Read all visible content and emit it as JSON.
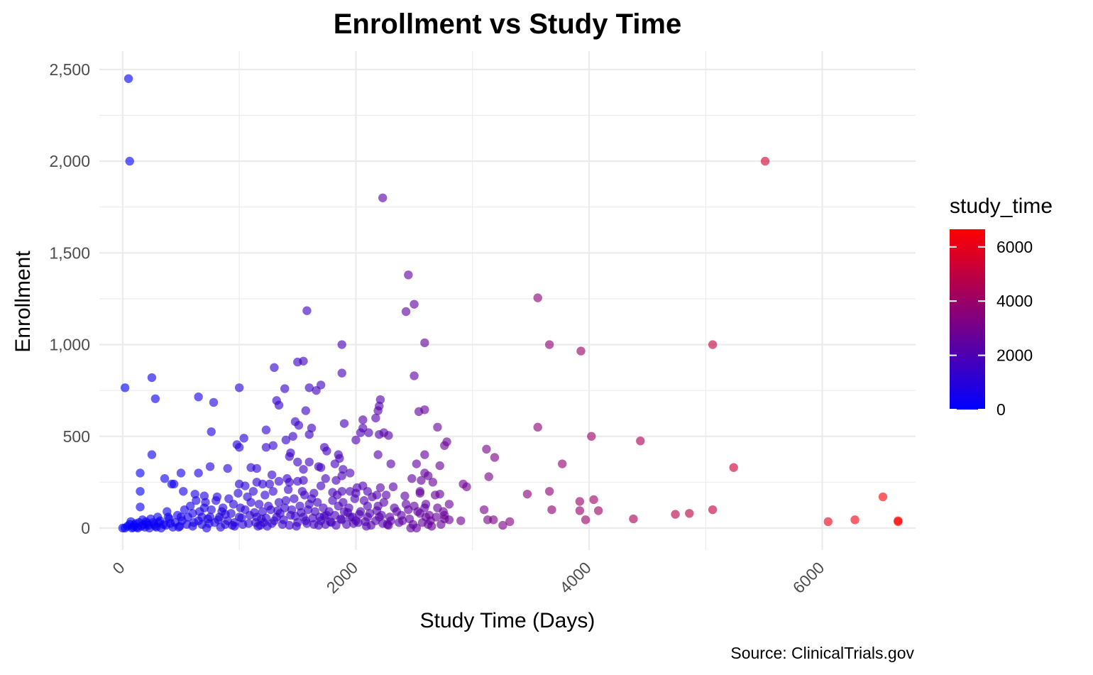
{
  "chart_data": {
    "type": "scatter",
    "title": "Enrollment vs Study Time",
    "xlabel": "Study Time (Days)",
    "ylabel": "Enrollment",
    "caption": "Source: ClinicalTrials.gov",
    "xlim": [
      -200,
      6800
    ],
    "ylim": [
      -120,
      2600
    ],
    "x_ticks": [
      0,
      2000,
      4000,
      6000
    ],
    "x_tick_labels": [
      "0",
      "2000",
      "4000",
      "6000"
    ],
    "y_ticks": [
      0,
      500,
      1000,
      1500,
      2000,
      2500
    ],
    "y_tick_labels": [
      "0",
      "500",
      "1,000",
      "1,500",
      "2,000",
      "2,500"
    ],
    "grid": true,
    "legend": {
      "title": "study_time",
      "position": "right",
      "min": 0,
      "max": 6650,
      "ticks": [
        0,
        2000,
        4000,
        6000
      ],
      "tick_labels": [
        "0",
        "2000",
        "4000",
        "6000"
      ],
      "color_low": "#0000ff",
      "color_high": "#ff0000"
    },
    "points": [
      [
        50,
        2450
      ],
      [
        60,
        2000
      ],
      [
        5510,
        2000
      ],
      [
        2230,
        1800
      ],
      [
        2450,
        1380
      ],
      [
        3560,
        1255
      ],
      [
        2500,
        1220
      ],
      [
        2430,
        1180
      ],
      [
        1580,
        1185
      ],
      [
        2590,
        1010
      ],
      [
        1880,
        1000
      ],
      [
        3660,
        1000
      ],
      [
        5060,
        1000
      ],
      [
        3930,
        965
      ],
      [
        1500,
        905
      ],
      [
        1550,
        910
      ],
      [
        1880,
        845
      ],
      [
        1300,
        875
      ],
      [
        2500,
        830
      ],
      [
        250,
        820
      ],
      [
        20,
        765
      ],
      [
        1000,
        765
      ],
      [
        1390,
        760
      ],
      [
        1600,
        765
      ],
      [
        1700,
        780
      ],
      [
        1660,
        750
      ],
      [
        280,
        705
      ],
      [
        650,
        715
      ],
      [
        780,
        685
      ],
      [
        1320,
        695
      ],
      [
        1340,
        670
      ],
      [
        2210,
        700
      ],
      [
        2200,
        665
      ],
      [
        2190,
        640
      ],
      [
        2540,
        635
      ],
      [
        2590,
        645
      ],
      [
        2170,
        600
      ],
      [
        2060,
        590
      ],
      [
        1570,
        640
      ],
      [
        1480,
        580
      ],
      [
        1510,
        560
      ],
      [
        1900,
        570
      ],
      [
        2060,
        545
      ],
      [
        2700,
        550
      ],
      [
        3560,
        550
      ],
      [
        760,
        525
      ],
      [
        1230,
        535
      ],
      [
        1040,
        490
      ],
      [
        1620,
        545
      ],
      [
        1600,
        510
      ],
      [
        2110,
        520
      ],
      [
        2240,
        520
      ],
      [
        2200,
        510
      ],
      [
        2280,
        505
      ],
      [
        2040,
        520
      ],
      [
        2000,
        480
      ],
      [
        1460,
        500
      ],
      [
        1400,
        480
      ],
      [
        2780,
        470
      ],
      [
        4020,
        500
      ],
      [
        4440,
        475
      ],
      [
        980,
        455
      ],
      [
        1000,
        440
      ],
      [
        1230,
        440
      ],
      [
        1290,
        450
      ],
      [
        1730,
        440
      ],
      [
        1750,
        420
      ],
      [
        1440,
        410
      ],
      [
        1430,
        390
      ],
      [
        1850,
        400
      ],
      [
        1860,
        380
      ],
      [
        2760,
        450
      ],
      [
        3120,
        430
      ],
      [
        250,
        400
      ],
      [
        2190,
        400
      ],
      [
        2590,
        400
      ],
      [
        3190,
        385
      ],
      [
        1500,
        360
      ],
      [
        1600,
        360
      ],
      [
        1680,
        335
      ],
      [
        1700,
        330
      ],
      [
        1820,
        350
      ],
      [
        2300,
        350
      ],
      [
        2520,
        350
      ],
      [
        1890,
        320
      ],
      [
        2590,
        300
      ],
      [
        2620,
        285
      ],
      [
        2720,
        340
      ],
      [
        3770,
        350
      ],
      [
        5240,
        330
      ],
      [
        150,
        300
      ],
      [
        500,
        300
      ],
      [
        650,
        300
      ],
      [
        750,
        335
      ],
      [
        900,
        325
      ],
      [
        1100,
        330
      ],
      [
        1150,
        325
      ],
      [
        1550,
        320
      ],
      [
        1950,
        300
      ],
      [
        1880,
        285
      ],
      [
        1280,
        290
      ],
      [
        1340,
        255
      ],
      [
        1410,
        270
      ],
      [
        1430,
        250
      ],
      [
        1550,
        260
      ],
      [
        1740,
        270
      ],
      [
        1830,
        260
      ],
      [
        2480,
        270
      ],
      [
        2560,
        260
      ],
      [
        2660,
        250
      ],
      [
        2920,
        240
      ],
      [
        2950,
        225
      ],
      [
        3140,
        280
      ],
      [
        360,
        270
      ],
      [
        420,
        240
      ],
      [
        440,
        240
      ],
      [
        1000,
        240
      ],
      [
        1050,
        230
      ],
      [
        1150,
        250
      ],
      [
        1200,
        240
      ],
      [
        1260,
        240
      ],
      [
        1500,
        255
      ],
      [
        1700,
        230
      ],
      [
        2010,
        220
      ],
      [
        2060,
        230
      ],
      [
        2210,
        220
      ],
      [
        2320,
        225
      ],
      [
        2550,
        200
      ],
      [
        3660,
        200
      ],
      [
        150,
        200
      ],
      [
        520,
        200
      ],
      [
        620,
        185
      ],
      [
        700,
        175
      ],
      [
        1560,
        180
      ],
      [
        1640,
        190
      ],
      [
        1800,
        195
      ],
      [
        1880,
        200
      ],
      [
        1950,
        200
      ],
      [
        2000,
        190
      ],
      [
        2100,
        200
      ],
      [
        2180,
        180
      ],
      [
        2260,
        180
      ],
      [
        2420,
        175
      ],
      [
        2550,
        190
      ],
      [
        2680,
        180
      ],
      [
        2720,
        185
      ],
      [
        3470,
        185
      ],
      [
        3920,
        145
      ],
      [
        4040,
        155
      ],
      [
        6520,
        170
      ],
      [
        150,
        115
      ],
      [
        3100,
        100
      ],
      [
        3680,
        100
      ],
      [
        3920,
        95
      ],
      [
        4080,
        95
      ],
      [
        5060,
        100
      ],
      [
        3970,
        45
      ],
      [
        4380,
        50
      ],
      [
        4740,
        75
      ],
      [
        4860,
        80
      ],
      [
        6050,
        35
      ],
      [
        6280,
        45
      ],
      [
        6650,
        40
      ],
      [
        6650,
        35
      ],
      [
        2900,
        40
      ],
      [
        3130,
        45
      ],
      [
        3180,
        45
      ],
      [
        3320,
        35
      ],
      [
        3260,
        15
      ],
      [
        2760,
        50
      ],
      [
        2760,
        70
      ],
      [
        2800,
        45
      ],
      [
        2470,
        0
      ],
      [
        2520,
        0
      ],
      [
        2620,
        20
      ],
      [
        2640,
        40
      ],
      [
        2600,
        60
      ],
      [
        2550,
        80
      ],
      [
        2400,
        40
      ],
      [
        2300,
        40
      ],
      [
        2200,
        60
      ],
      [
        2350,
        90
      ],
      [
        2450,
        100
      ],
      [
        2500,
        120
      ],
      [
        2600,
        130
      ],
      [
        2700,
        110
      ],
      [
        2800,
        130
      ],
      [
        2100,
        60
      ],
      [
        2100,
        120
      ],
      [
        2000,
        40
      ],
      [
        1950,
        60
      ],
      [
        1900,
        90
      ],
      [
        1850,
        120
      ],
      [
        1800,
        150
      ],
      [
        1750,
        70
      ],
      [
        1700,
        40
      ],
      [
        1650,
        90
      ],
      [
        1600,
        130
      ],
      [
        1550,
        60
      ],
      [
        1500,
        30
      ],
      [
        1450,
        100
      ],
      [
        1400,
        150
      ],
      [
        1350,
        80
      ],
      [
        1300,
        40
      ],
      [
        1250,
        120
      ],
      [
        1200,
        90
      ],
      [
        1150,
        60
      ],
      [
        1100,
        140
      ],
      [
        1050,
        100
      ],
      [
        1000,
        60
      ],
      [
        950,
        130
      ],
      [
        900,
        40
      ],
      [
        850,
        90
      ],
      [
        800,
        150
      ],
      [
        750,
        60
      ],
      [
        700,
        110
      ],
      [
        650,
        40
      ],
      [
        600,
        80
      ],
      [
        550,
        20
      ],
      [
        500,
        60
      ],
      [
        450,
        30
      ],
      [
        400,
        50
      ],
      [
        380,
        90
      ],
      [
        350,
        20
      ],
      [
        320,
        40
      ],
      [
        300,
        60
      ],
      [
        280,
        10
      ],
      [
        260,
        30
      ],
      [
        240,
        50
      ],
      [
        220,
        15
      ],
      [
        200,
        35
      ],
      [
        180,
        20
      ],
      [
        160,
        10
      ],
      [
        140,
        30
      ],
      [
        120,
        5
      ],
      [
        100,
        15
      ],
      [
        80,
        0
      ],
      [
        60,
        20
      ],
      [
        40,
        10
      ],
      [
        20,
        0
      ],
      [
        0,
        0
      ],
      [
        70,
        35
      ],
      [
        90,
        5
      ],
      [
        110,
        25
      ],
      [
        130,
        0
      ],
      [
        170,
        45
      ],
      [
        190,
        5
      ],
      [
        210,
        25
      ],
      [
        230,
        0
      ],
      [
        270,
        20
      ],
      [
        290,
        5
      ],
      [
        310,
        30
      ],
      [
        330,
        0
      ],
      [
        370,
        15
      ],
      [
        390,
        60
      ],
      [
        410,
        25
      ],
      [
        430,
        5
      ],
      [
        470,
        70
      ],
      [
        490,
        10
      ],
      [
        510,
        40
      ],
      [
        530,
        100
      ],
      [
        560,
        60
      ],
      [
        580,
        120
      ],
      [
        610,
        30
      ],
      [
        630,
        150
      ],
      [
        660,
        90
      ],
      [
        680,
        20
      ],
      [
        710,
        140
      ],
      [
        730,
        50
      ],
      [
        760,
        100
      ],
      [
        790,
        30
      ],
      [
        810,
        170
      ],
      [
        830,
        60
      ],
      [
        860,
        110
      ],
      [
        880,
        20
      ],
      [
        910,
        160
      ],
      [
        930,
        80
      ],
      [
        960,
        30
      ],
      [
        990,
        190
      ],
      [
        1010,
        110
      ],
      [
        1030,
        20
      ],
      [
        1070,
        170
      ],
      [
        1090,
        70
      ],
      [
        1120,
        200
      ],
      [
        1140,
        30
      ],
      [
        1170,
        130
      ],
      [
        1190,
        50
      ],
      [
        1220,
        180
      ],
      [
        1240,
        10
      ],
      [
        1270,
        100
      ],
      [
        1290,
        200
      ],
      [
        1320,
        60
      ],
      [
        1340,
        140
      ],
      [
        1370,
        20
      ],
      [
        1390,
        110
      ],
      [
        1420,
        210
      ],
      [
        1440,
        70
      ],
      [
        1470,
        160
      ],
      [
        1490,
        10
      ],
      [
        1520,
        120
      ],
      [
        1540,
        200
      ],
      [
        1570,
        40
      ],
      [
        1590,
        100
      ],
      [
        1620,
        160
      ],
      [
        1640,
        20
      ],
      [
        1670,
        140
      ],
      [
        1690,
        60
      ],
      [
        1720,
        110
      ],
      [
        1740,
        20
      ],
      [
        1770,
        90
      ],
      [
        1790,
        30
      ],
      [
        1820,
        70
      ],
      [
        1840,
        180
      ],
      [
        1870,
        50
      ],
      [
        1890,
        140
      ],
      [
        1920,
        20
      ],
      [
        1940,
        110
      ],
      [
        1970,
        60
      ],
      [
        1990,
        160
      ],
      [
        2020,
        30
      ],
      [
        2040,
        90
      ],
      [
        2070,
        150
      ],
      [
        2090,
        10
      ],
      [
        2120,
        80
      ],
      [
        2140,
        170
      ],
      [
        2170,
        40
      ],
      [
        2190,
        120
      ],
      [
        2220,
        70
      ],
      [
        2240,
        140
      ],
      [
        2270,
        20
      ],
      [
        2290,
        60
      ],
      [
        2330,
        110
      ],
      [
        2370,
        30
      ],
      [
        2390,
        70
      ],
      [
        2430,
        130
      ],
      [
        2460,
        50
      ],
      [
        2490,
        20
      ],
      [
        2530,
        90
      ],
      [
        2570,
        30
      ],
      [
        2590,
        110
      ],
      [
        2630,
        70
      ],
      [
        2650,
        10
      ],
      [
        2690,
        60
      ],
      [
        2730,
        20
      ],
      [
        2750,
        90
      ],
      [
        1160,
        10
      ],
      [
        1210,
        30
      ],
      [
        960,
        10
      ],
      [
        840,
        5
      ],
      [
        720,
        0
      ],
      [
        600,
        10
      ],
      [
        480,
        5
      ],
      [
        680,
        60
      ],
      [
        740,
        25
      ],
      [
        820,
        45
      ],
      [
        880,
        75
      ],
      [
        940,
        15
      ],
      [
        1020,
        55
      ],
      [
        1080,
        25
      ],
      [
        1130,
        85
      ],
      [
        1180,
        15
      ],
      [
        1230,
        55
      ],
      [
        1280,
        25
      ],
      [
        1330,
        95
      ],
      [
        1380,
        45
      ],
      [
        1430,
        15
      ],
      [
        1480,
        65
      ],
      [
        1530,
        85
      ],
      [
        1580,
        25
      ],
      [
        1630,
        55
      ],
      [
        1680,
        15
      ],
      [
        1730,
        65
      ],
      [
        1780,
        35
      ],
      [
        1830,
        15
      ],
      [
        1880,
        45
      ],
      [
        1930,
        85
      ],
      [
        1980,
        25
      ],
      [
        2030,
        75
      ],
      [
        2080,
        35
      ],
      [
        2130,
        15
      ],
      [
        2180,
        95
      ],
      [
        2230,
        25
      ],
      [
        2280,
        15
      ]
    ]
  }
}
